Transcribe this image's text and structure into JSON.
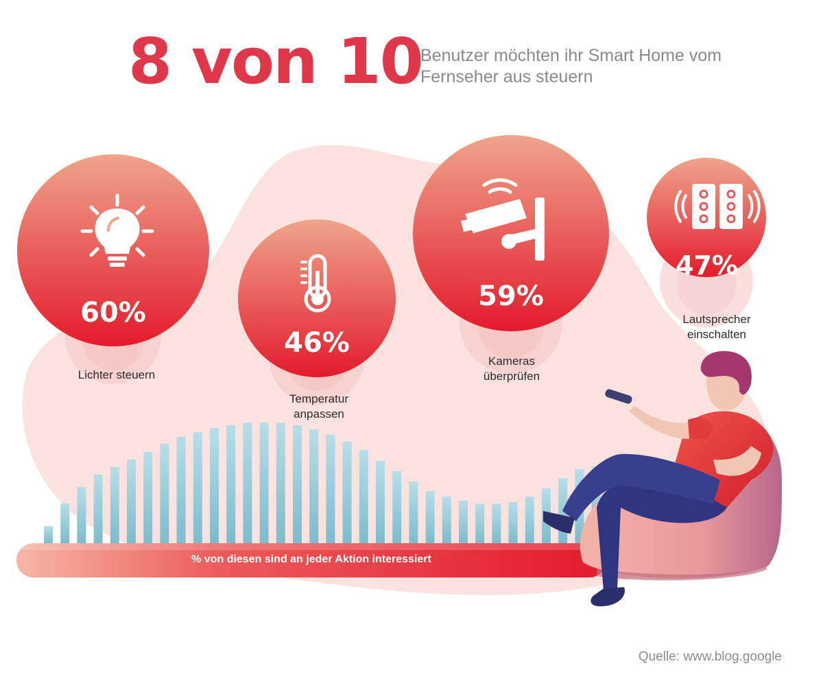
{
  "headline": {
    "big": "8 von 10",
    "sub": "Benutzer möchten ihr Smart Home vom Fernseher aus steuern"
  },
  "colors": {
    "accent": "#e0384a",
    "gradient_top": "#efa58a",
    "gradient_bottom": "#e31b2b",
    "subtitle": "#8a8a8a",
    "bars": "#9fcfdc",
    "blob": "#fbe2df"
  },
  "actions": [
    {
      "id": "lights",
      "percent": "60%",
      "value": 60,
      "label_lines": [
        "Lichter steuern"
      ],
      "icon": "lightbulb-icon"
    },
    {
      "id": "temperature",
      "percent": "46%",
      "value": 46,
      "label_lines": [
        "Temperatur",
        "anpassen"
      ],
      "icon": "thermometer-icon"
    },
    {
      "id": "cameras",
      "percent": "59%",
      "value": 59,
      "label_lines": [
        "Kameras",
        "überprüfen"
      ],
      "icon": "security-camera-icon"
    },
    {
      "id": "speakers",
      "percent": "47%",
      "value": 47,
      "label_lines": [
        "Lautsprecher",
        "einschalten"
      ],
      "icon": "speaker-icon"
    }
  ],
  "bar_caption": "% von diesen sind an jeder Aktion interessiert",
  "source": "Quelle: www.blog.google"
}
